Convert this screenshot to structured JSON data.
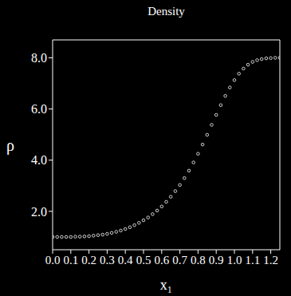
{
  "chart_data": {
    "type": "scatter",
    "title": "Density",
    "x_label": "x₁",
    "y_label": "ρ",
    "color": "#ffffff",
    "marker": "open_circle",
    "xlim": [
      0,
      1.25
    ],
    "ylim": [
      0.5,
      8.7
    ],
    "xticks": [
      {
        "value": 0,
        "label": "0.0"
      },
      0.1,
      0.2,
      0.3,
      0.4,
      0.5,
      0.6,
      0.7,
      0.8,
      0.9,
      {
        "value": 1,
        "label": "1.0"
      },
      1.1,
      1.2
    ],
    "yticks": [
      {
        "value": 2,
        "label": "2.0"
      },
      {
        "value": 4,
        "label": "4.0"
      },
      {
        "value": 6,
        "label": "6.0"
      },
      {
        "value": 8,
        "label": "8.0"
      }
    ],
    "grid": false,
    "x": [
      0.0,
      0.025,
      0.05,
      0.075,
      0.1,
      0.125,
      0.15,
      0.175,
      0.2,
      0.225,
      0.25,
      0.275,
      0.3,
      0.325,
      0.35,
      0.375,
      0.4,
      0.425,
      0.45,
      0.475,
      0.5,
      0.525,
      0.55,
      0.575,
      0.6,
      0.625,
      0.65,
      0.675,
      0.7,
      0.725,
      0.75,
      0.775,
      0.8,
      0.825,
      0.85,
      0.875,
      0.9,
      0.925,
      0.95,
      0.975,
      1.0,
      1.025,
      1.05,
      1.075,
      1.1,
      1.125,
      1.15,
      1.175,
      1.2,
      1.225,
      1.25
    ],
    "values": [
      1.0,
      1.0,
      1.0,
      1.0,
      1.0,
      1.01,
      1.01,
      1.02,
      1.03,
      1.05,
      1.07,
      1.09,
      1.12,
      1.16,
      1.2,
      1.25,
      1.31,
      1.38,
      1.46,
      1.55,
      1.65,
      1.76,
      1.89,
      2.03,
      2.19,
      2.37,
      2.57,
      2.79,
      3.03,
      3.3,
      3.59,
      3.91,
      4.25,
      4.61,
      4.99,
      5.38,
      5.77,
      6.15,
      6.51,
      6.84,
      7.13,
      7.38,
      7.58,
      7.73,
      7.84,
      7.91,
      7.95,
      7.98,
      7.99,
      8.0,
      8.0
    ]
  }
}
